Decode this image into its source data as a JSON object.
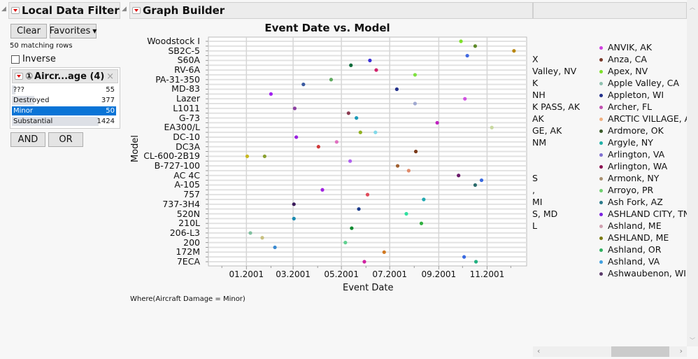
{
  "filter": {
    "title": "Local Data Filter",
    "clear_label": "Clear",
    "favorites_label": "Favorites",
    "matching_rows": "50 matching rows",
    "inverse_label": "Inverse",
    "inverse_checked": false,
    "column_title": "Aircr...age (4)",
    "column_number": "①",
    "levels": [
      {
        "label": "???",
        "count": "55",
        "selected": false,
        "fraction": 0.04
      },
      {
        "label": "Destroyed",
        "count": "377",
        "selected": false,
        "fraction": 0.26
      },
      {
        "label": "Minor",
        "count": "50",
        "selected": true,
        "fraction": 0.035
      },
      {
        "label": "Substantial",
        "count": "1424",
        "selected": false,
        "fraction": 1.0
      }
    ],
    "and_label": "AND",
    "or_label": "OR"
  },
  "graph": {
    "title": "Graph Builder",
    "where_text": "Where(Aircraft Damage = Minor)"
  },
  "chart_data": {
    "type": "scatter",
    "title": "Event Date vs. Model",
    "xlabel": "Event Date",
    "ylabel": "Model",
    "xlim": [
      "2000-11-14",
      "2001-12-21"
    ],
    "x_ticks": [
      {
        "date": "2001-01-01",
        "label": "01.2001"
      },
      {
        "date": "2001-03-01",
        "label": "03.2001"
      },
      {
        "date": "2001-05-01",
        "label": "05.2001"
      },
      {
        "date": "2001-07-01",
        "label": "07.2001"
      },
      {
        "date": "2001-09-01",
        "label": "09.2001"
      },
      {
        "date": "2001-11-01",
        "label": "11.2001"
      }
    ],
    "x_minor_ticks": [
      "2000-12-01",
      "2001-02-01",
      "2001-04-01",
      "2001-06-01",
      "2001-08-01",
      "2001-10-01",
      "2001-12-01"
    ],
    "grid": true,
    "categories": [
      "Woodstock I",
      null,
      "SB2C-5",
      null,
      "S60A",
      null,
      "RV-6A",
      null,
      "PA-31-350",
      null,
      "MD-83",
      null,
      "Lazer",
      null,
      "L1011",
      null,
      "G-73",
      null,
      "EA300/L",
      null,
      "DC-10",
      null,
      "DC3A",
      null,
      "CL-600-2B19",
      null,
      "B-727-100",
      null,
      "AC 4C",
      null,
      "A-105",
      null,
      "757",
      null,
      "737-3H4",
      null,
      "520N",
      null,
      "210L",
      null,
      "206-L3",
      null,
      "200",
      null,
      "172M",
      null,
      "7ECA"
    ],
    "points": [
      {
        "x": "2001-09-29",
        "row": 0,
        "color": "#7ee02a"
      },
      {
        "x": "2001-10-17",
        "row": 1,
        "color": "#5e8a2a"
      },
      {
        "x": "2001-12-05",
        "row": 2,
        "color": "#b8860b"
      },
      {
        "x": "2001-10-07",
        "row": 3,
        "color": "#4169e1"
      },
      {
        "x": "2001-06-06",
        "row": 4,
        "color": "#3a2fd8"
      },
      {
        "x": "2001-05-13",
        "row": 5,
        "color": "#0b6b3a"
      },
      {
        "x": "2001-06-14",
        "row": 6,
        "color": "#d0206a"
      },
      {
        "x": "2001-08-02",
        "row": 7,
        "color": "#7ee040"
      },
      {
        "x": "2001-04-18",
        "row": 8,
        "color": "#5faa5f"
      },
      {
        "x": "2001-03-14",
        "row": 9,
        "color": "#3a5aa0"
      },
      {
        "x": "2001-07-10",
        "row": 10,
        "color": "#22308a"
      },
      {
        "x": "2001-02-01",
        "row": 11,
        "color": "#a020f0"
      },
      {
        "x": "2001-10-04",
        "row": 12,
        "color": "#d050e0"
      },
      {
        "x": "2001-08-02",
        "row": 13,
        "color": "#a0a8d0"
      },
      {
        "x": "2001-03-03",
        "row": 14,
        "color": "#8a3fa0"
      },
      {
        "x": "2001-05-10",
        "row": 15,
        "color": "#8a3a50"
      },
      {
        "x": "2001-05-20",
        "row": 16,
        "color": "#1a9ab8"
      },
      {
        "x": "2001-08-30",
        "row": 17,
        "color": "#c020c0"
      },
      {
        "x": "2001-11-07",
        "row": 18,
        "color": "#c8d8a0"
      },
      {
        "x": "2001-05-25",
        "row": 19,
        "color": "#90b020"
      },
      {
        "x": "2001-06-13",
        "row": 19,
        "color": "#80d8e8"
      },
      {
        "x": "2001-03-05",
        "row": 20,
        "color": "#9a20e0"
      },
      {
        "x": "2001-04-25",
        "row": 21,
        "color": "#e070c0"
      },
      {
        "x": "2001-04-02",
        "row": 22,
        "color": "#d03a3a"
      },
      {
        "x": "2001-08-03",
        "row": 23,
        "color": "#7a3a1a"
      },
      {
        "x": "2001-01-02",
        "row": 24,
        "color": "#c8b820"
      },
      {
        "x": "2001-01-24",
        "row": 24,
        "color": "#8aa030"
      },
      {
        "x": "2001-05-12",
        "row": 25,
        "color": "#b060f0"
      },
      {
        "x": "2001-07-11",
        "row": 26,
        "color": "#a06030"
      },
      {
        "x": "2001-07-25",
        "row": 27,
        "color": "#e08a6a"
      },
      {
        "x": "2001-09-26",
        "row": 28,
        "color": "#6a1a6a"
      },
      {
        "x": "2001-10-25",
        "row": 29,
        "color": "#3a6ae0"
      },
      {
        "x": "2001-10-17",
        "row": 30,
        "color": "#2a6a6a"
      },
      {
        "x": "2001-04-07",
        "row": 31,
        "color": "#a020e0"
      },
      {
        "x": "2001-06-03",
        "row": 32,
        "color": "#e04a5a"
      },
      {
        "x": "2001-08-13",
        "row": 33,
        "color": "#20a8b0"
      },
      {
        "x": "2001-03-02",
        "row": 34,
        "color": "#3a1a5a"
      },
      {
        "x": "2001-05-23",
        "row": 35,
        "color": "#1a3a8a"
      },
      {
        "x": "2001-07-22",
        "row": 36,
        "color": "#30e0a0"
      },
      {
        "x": "2001-03-02",
        "row": 37,
        "color": "#1a8ab0"
      },
      {
        "x": "2001-08-10",
        "row": 38,
        "color": "#30b040"
      },
      {
        "x": "2001-05-14",
        "row": 39,
        "color": "#108a30"
      },
      {
        "x": "2001-01-06",
        "row": 40,
        "color": "#80c0a0"
      },
      {
        "x": "2001-01-21",
        "row": 41,
        "color": "#c8c080"
      },
      {
        "x": "2001-05-06",
        "row": 42,
        "color": "#60d090"
      },
      {
        "x": "2001-02-06",
        "row": 43,
        "color": "#3a8ad0"
      },
      {
        "x": "2001-06-24",
        "row": 44,
        "color": "#d07820"
      },
      {
        "x": "2001-10-03",
        "row": 45,
        "color": "#3a6ae0"
      },
      {
        "x": "2001-05-30",
        "row": 46,
        "color": "#d020a0"
      },
      {
        "x": "2001-10-18",
        "row": 46,
        "color": "#20b080"
      }
    ],
    "legend_clipped": [
      "X",
      "Valley, NV",
      "K",
      "NH",
      "K PASS, AK",
      "AK",
      "GE, AK",
      "NM",
      "",
      "",
      "S",
      ",",
      "MI",
      "S, MD",
      "L"
    ],
    "legend": [
      {
        "label": "ANVIK, AK",
        "color": "#d040e0"
      },
      {
        "label": "Anza, CA",
        "color": "#7a3a2a"
      },
      {
        "label": "Apex, NV",
        "color": "#7ee02a"
      },
      {
        "label": "Apple Valley, CA",
        "color": "#90c0b0"
      },
      {
        "label": "Appleton, WI",
        "color": "#22308a"
      },
      {
        "label": "Archer, FL",
        "color": "#c050b0"
      },
      {
        "label": "ARCTIC VILLAGE, A",
        "color": "#f0b080"
      },
      {
        "label": "Ardmore, OK",
        "color": "#3a5a2a"
      },
      {
        "label": "Argyle, NY",
        "color": "#20b0a8"
      },
      {
        "label": "Arlington, VA",
        "color": "#8070d0"
      },
      {
        "label": "Arlington, WA",
        "color": "#8a1050"
      },
      {
        "label": "Armonk, NY",
        "color": "#a89070"
      },
      {
        "label": "Arroyo, PR",
        "color": "#70d070"
      },
      {
        "label": "Ash Fork, AZ",
        "color": "#2a7a8a"
      },
      {
        "label": "ASHLAND CITY, TN",
        "color": "#7a20e0"
      },
      {
        "label": "Ashland, ME",
        "color": "#d0a0b0"
      },
      {
        "label": "ASHLAND, ME",
        "color": "#7a7a10"
      },
      {
        "label": "Ashland, OR",
        "color": "#30b060"
      },
      {
        "label": "Ashland, VA",
        "color": "#40a0e0"
      },
      {
        "label": "Ashwaubenon, WI",
        "color": "#5a3a6a"
      }
    ]
  }
}
